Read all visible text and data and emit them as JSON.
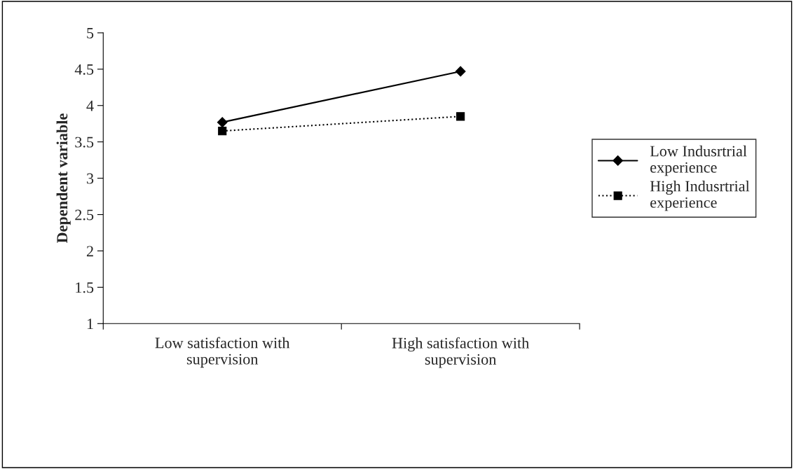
{
  "chart_data": {
    "type": "line",
    "ylabel": "Dependent variable",
    "categories": [
      "Low satisfaction with\nsupervision",
      "High satisfaction with\nsupervision"
    ],
    "series": [
      {
        "name": "Low Indusrtrial\nexperience",
        "color": "#000000",
        "values": [
          3.77,
          4.47
        ],
        "marker": "diamond",
        "line_style": "solid"
      },
      {
        "name": "High Indusrtrial\nexperience",
        "color": "#000000",
        "values": [
          3.65,
          3.85
        ],
        "marker": "square",
        "line_style": "dotted"
      }
    ],
    "ylim": [
      1,
      5
    ],
    "yticks": [
      1,
      1.5,
      2,
      2.5,
      3,
      3.5,
      4,
      4.5,
      5
    ],
    "grid": false,
    "legend": "right"
  }
}
